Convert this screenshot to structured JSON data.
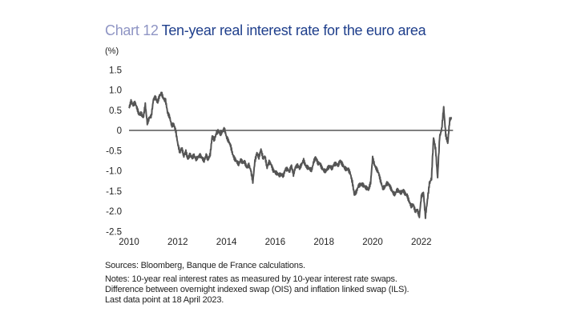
{
  "chart_data": {
    "type": "line",
    "title_prefix": "Chart 12",
    "title": "Ten-year real interest rate for the euro area",
    "ylabel": "(%)",
    "xlabel": "",
    "ylim": [
      -2.5,
      1.5
    ],
    "yticks": [
      1.5,
      1.0,
      0.5,
      0,
      -0.5,
      -1.0,
      -1.5,
      -2.0,
      -2.5
    ],
    "ytick_labels": [
      "1.5",
      "1.0",
      "0.5",
      "0",
      "-0.5",
      "-1.0",
      "-1.5",
      "-2.0",
      "-2.5"
    ],
    "xlim": [
      2010,
      2023.3
    ],
    "xticks": [
      2010,
      2012,
      2014,
      2016,
      2018,
      2020,
      2022
    ],
    "xtick_labels": [
      "2010",
      "2012",
      "2014",
      "2016",
      "2018",
      "2020",
      "2022"
    ],
    "grid": false,
    "reference_line": 0,
    "line_color": "#555555",
    "series": [
      {
        "start": "2010-01",
        "frequency": "monthly",
        "values": [
          0.55,
          0.7,
          0.6,
          0.65,
          0.5,
          0.35,
          0.4,
          0.3,
          0.65,
          0.2,
          0.35,
          0.4,
          0.8,
          0.85,
          0.7,
          0.85,
          0.9,
          0.75,
          0.7,
          0.4,
          0.3,
          0.1,
          0.15,
          0.0,
          -0.3,
          -0.5,
          -0.4,
          -0.6,
          -0.5,
          -0.7,
          -0.6,
          -0.7,
          -0.65,
          -0.75,
          -0.7,
          -0.65,
          -0.7,
          -0.75,
          -0.6,
          -0.7,
          -0.55,
          -0.1,
          -0.2,
          -0.05,
          0.0,
          -0.1,
          -0.05,
          0.0,
          -0.2,
          -0.3,
          -0.4,
          -0.6,
          -0.7,
          -0.75,
          -0.8,
          -0.7,
          -0.75,
          -0.75,
          -0.9,
          -0.85,
          -1.0,
          -1.3,
          -0.8,
          -0.6,
          -0.7,
          -0.5,
          -0.7,
          -0.65,
          -0.9,
          -0.75,
          -0.8,
          -0.95,
          -1.0,
          -1.05,
          -1.1,
          -1.1,
          -1.15,
          -1.0,
          -1.0,
          -1.05,
          -0.9,
          -1.1,
          -0.9,
          -0.85,
          -0.9,
          -0.8,
          -0.7,
          -0.85,
          -0.9,
          -0.95,
          -1.0,
          -0.8,
          -0.7,
          -0.85,
          -0.85,
          -0.95,
          -1.0,
          -1.0,
          -0.9,
          -0.85,
          -0.9,
          -0.8,
          -0.8,
          -0.85,
          -0.75,
          -0.85,
          -0.95,
          -1.0,
          -1.0,
          -1.1,
          -1.3,
          -1.6,
          -1.5,
          -1.35,
          -1.3,
          -1.3,
          -1.35,
          -1.4,
          -1.45,
          -1.3,
          -0.7,
          -0.9,
          -1.0,
          -1.1,
          -1.3,
          -1.45,
          -1.4,
          -1.3,
          -1.3,
          -1.4,
          -1.5,
          -1.55,
          -1.45,
          -1.5,
          -1.55,
          -1.5,
          -1.6,
          -1.65,
          -1.8,
          -1.9,
          -1.85,
          -2.0,
          -1.95,
          -2.1,
          -1.6,
          -1.5,
          -2.1,
          -1.7,
          -1.3,
          -1.2,
          -0.2,
          -0.5,
          -1.2,
          -0.2,
          0.0,
          0.55,
          -0.1,
          -0.3,
          0.3,
          0.35
        ]
      }
    ]
  },
  "notes": {
    "sources": "Sources: Bloomberg, Banque de France calculations.",
    "line1": "Notes: 10-year real interest rates as measured by 10-year interest rate swaps.",
    "line2": "Difference between overnight indexed swap (OIS) and inflation linked swap (ILS).",
    "line3": "Last data point at 18 April 2023."
  }
}
